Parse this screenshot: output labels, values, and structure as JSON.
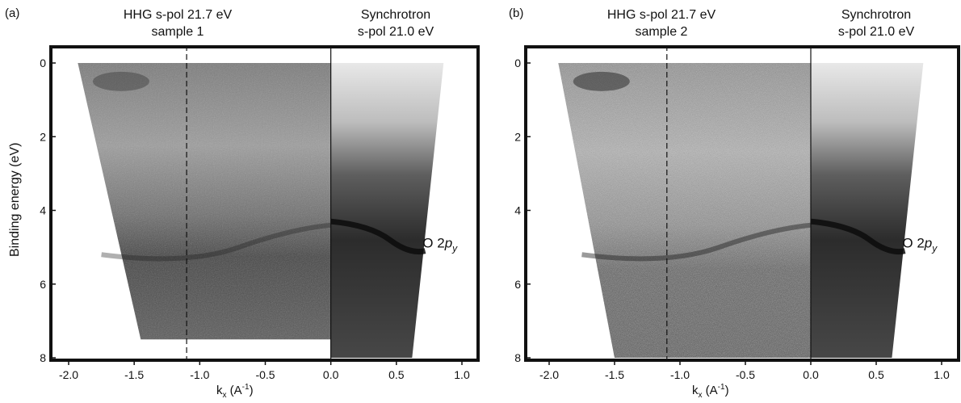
{
  "figure": {
    "panels": [
      {
        "label": "(a)",
        "hhg_title_line1": "HHG s-pol 21.7 eV",
        "hhg_title_line2": "sample 1",
        "sync_title_line1": "Synchrotron",
        "sync_title_line2": "s-pol 21.0 eV",
        "annotation_main": "O 2",
        "annotation_italic": "p",
        "annotation_sub": "y"
      },
      {
        "label": "(b)",
        "hhg_title_line1": "HHG s-pol 21.7 eV",
        "hhg_title_line2": "sample 2",
        "sync_title_line1": "Synchrotron",
        "sync_title_line2": "s-pol 21.0 eV",
        "annotation_main": "O 2",
        "annotation_italic": "p",
        "annotation_sub": "y"
      }
    ],
    "ylabel": "Binding energy (eV)",
    "xlabel_main": "k",
    "xlabel_sub": "x",
    "xlabel_unit": " (A",
    "xlabel_sup": "-1",
    "xlabel_close": ")"
  },
  "chart_data": [
    {
      "type": "heatmap",
      "title": "HHG s-pol 21.7 eV sample 1 / Synchrotron s-pol 21.0 eV",
      "x_ticks": [
        -2.0,
        -1.5,
        -1.0,
        -0.5,
        0.0,
        0.5,
        1.0
      ],
      "x_tick_labels": [
        "-2.0",
        "-1.5",
        "-1.0",
        "-0.5",
        "0.0",
        "0.5",
        "1.0"
      ],
      "y_ticks": [
        0,
        2,
        4,
        6,
        8
      ],
      "y_tick_labels": [
        "0",
        "2",
        "4",
        "6",
        "8"
      ],
      "xlim": [
        -2.15,
        1.15
      ],
      "ylim": [
        0,
        8
      ],
      "y_inverted": true,
      "divider_kx": 0.0,
      "dashed_line_kx": -1.1,
      "band_annotation_y": 4.9
    },
    {
      "type": "heatmap",
      "title": "HHG s-pol 21.7 eV sample 2 / Synchrotron s-pol 21.0 eV",
      "x_ticks": [
        -2.0,
        -1.5,
        -1.0,
        -0.5,
        0.0,
        0.5,
        1.0
      ],
      "x_tick_labels": [
        "-2.0",
        "-1.5",
        "-1.0",
        "-0.5",
        "0.0",
        "0.5",
        "1.0"
      ],
      "y_ticks": [
        0,
        2,
        4,
        6,
        8
      ],
      "y_tick_labels": [
        "0",
        "2",
        "4",
        "6",
        "8"
      ],
      "xlim": [
        -2.15,
        1.15
      ],
      "ylim": [
        0,
        8
      ],
      "y_inverted": true,
      "divider_kx": 0.0,
      "dashed_line_kx": -1.1,
      "band_annotation_y": 4.9
    }
  ]
}
